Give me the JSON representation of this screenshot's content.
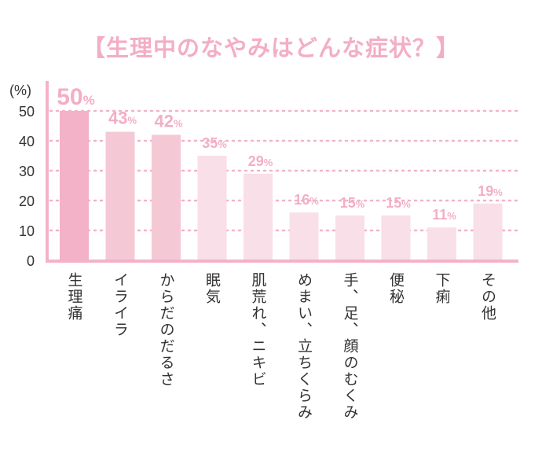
{
  "chart_data": {
    "type": "bar",
    "title": "【生理中のなやみはどんな症状？】",
    "ylabel": "(%)",
    "ylim": [
      0,
      50
    ],
    "yticks": [
      0,
      10,
      20,
      30,
      40,
      50
    ],
    "grid": "dotted horizontal",
    "categories": [
      "生理痛",
      "イライラ",
      "からだのだるさ",
      "眠気",
      "肌荒れ、ニキビ",
      "めまい、立ちくらみ",
      "手、足、顔のむくみ",
      "便秘",
      "下痢",
      "その他"
    ],
    "values": [
      50,
      43,
      42,
      35,
      29,
      16,
      15,
      15,
      11,
      19
    ],
    "data_labels": [
      "50",
      "43",
      "42",
      "35",
      "29",
      "16",
      "15",
      "15",
      "11",
      "19"
    ],
    "data_label_unit": "%",
    "bar_colors": [
      "#f3b2c8",
      "#f5c8d6",
      "#f5c8d6",
      "#f9dfe7",
      "#f9dfe7",
      "#f9dfe7",
      "#f9dfe7",
      "#f9dfe7",
      "#f9dfe7",
      "#f9dfe7"
    ]
  },
  "colors": {
    "accent": "#f3b2c8",
    "label": "#f3aec5",
    "axis": "#f3b2c8",
    "grid": "#f3b2c8",
    "text": "#333333"
  }
}
